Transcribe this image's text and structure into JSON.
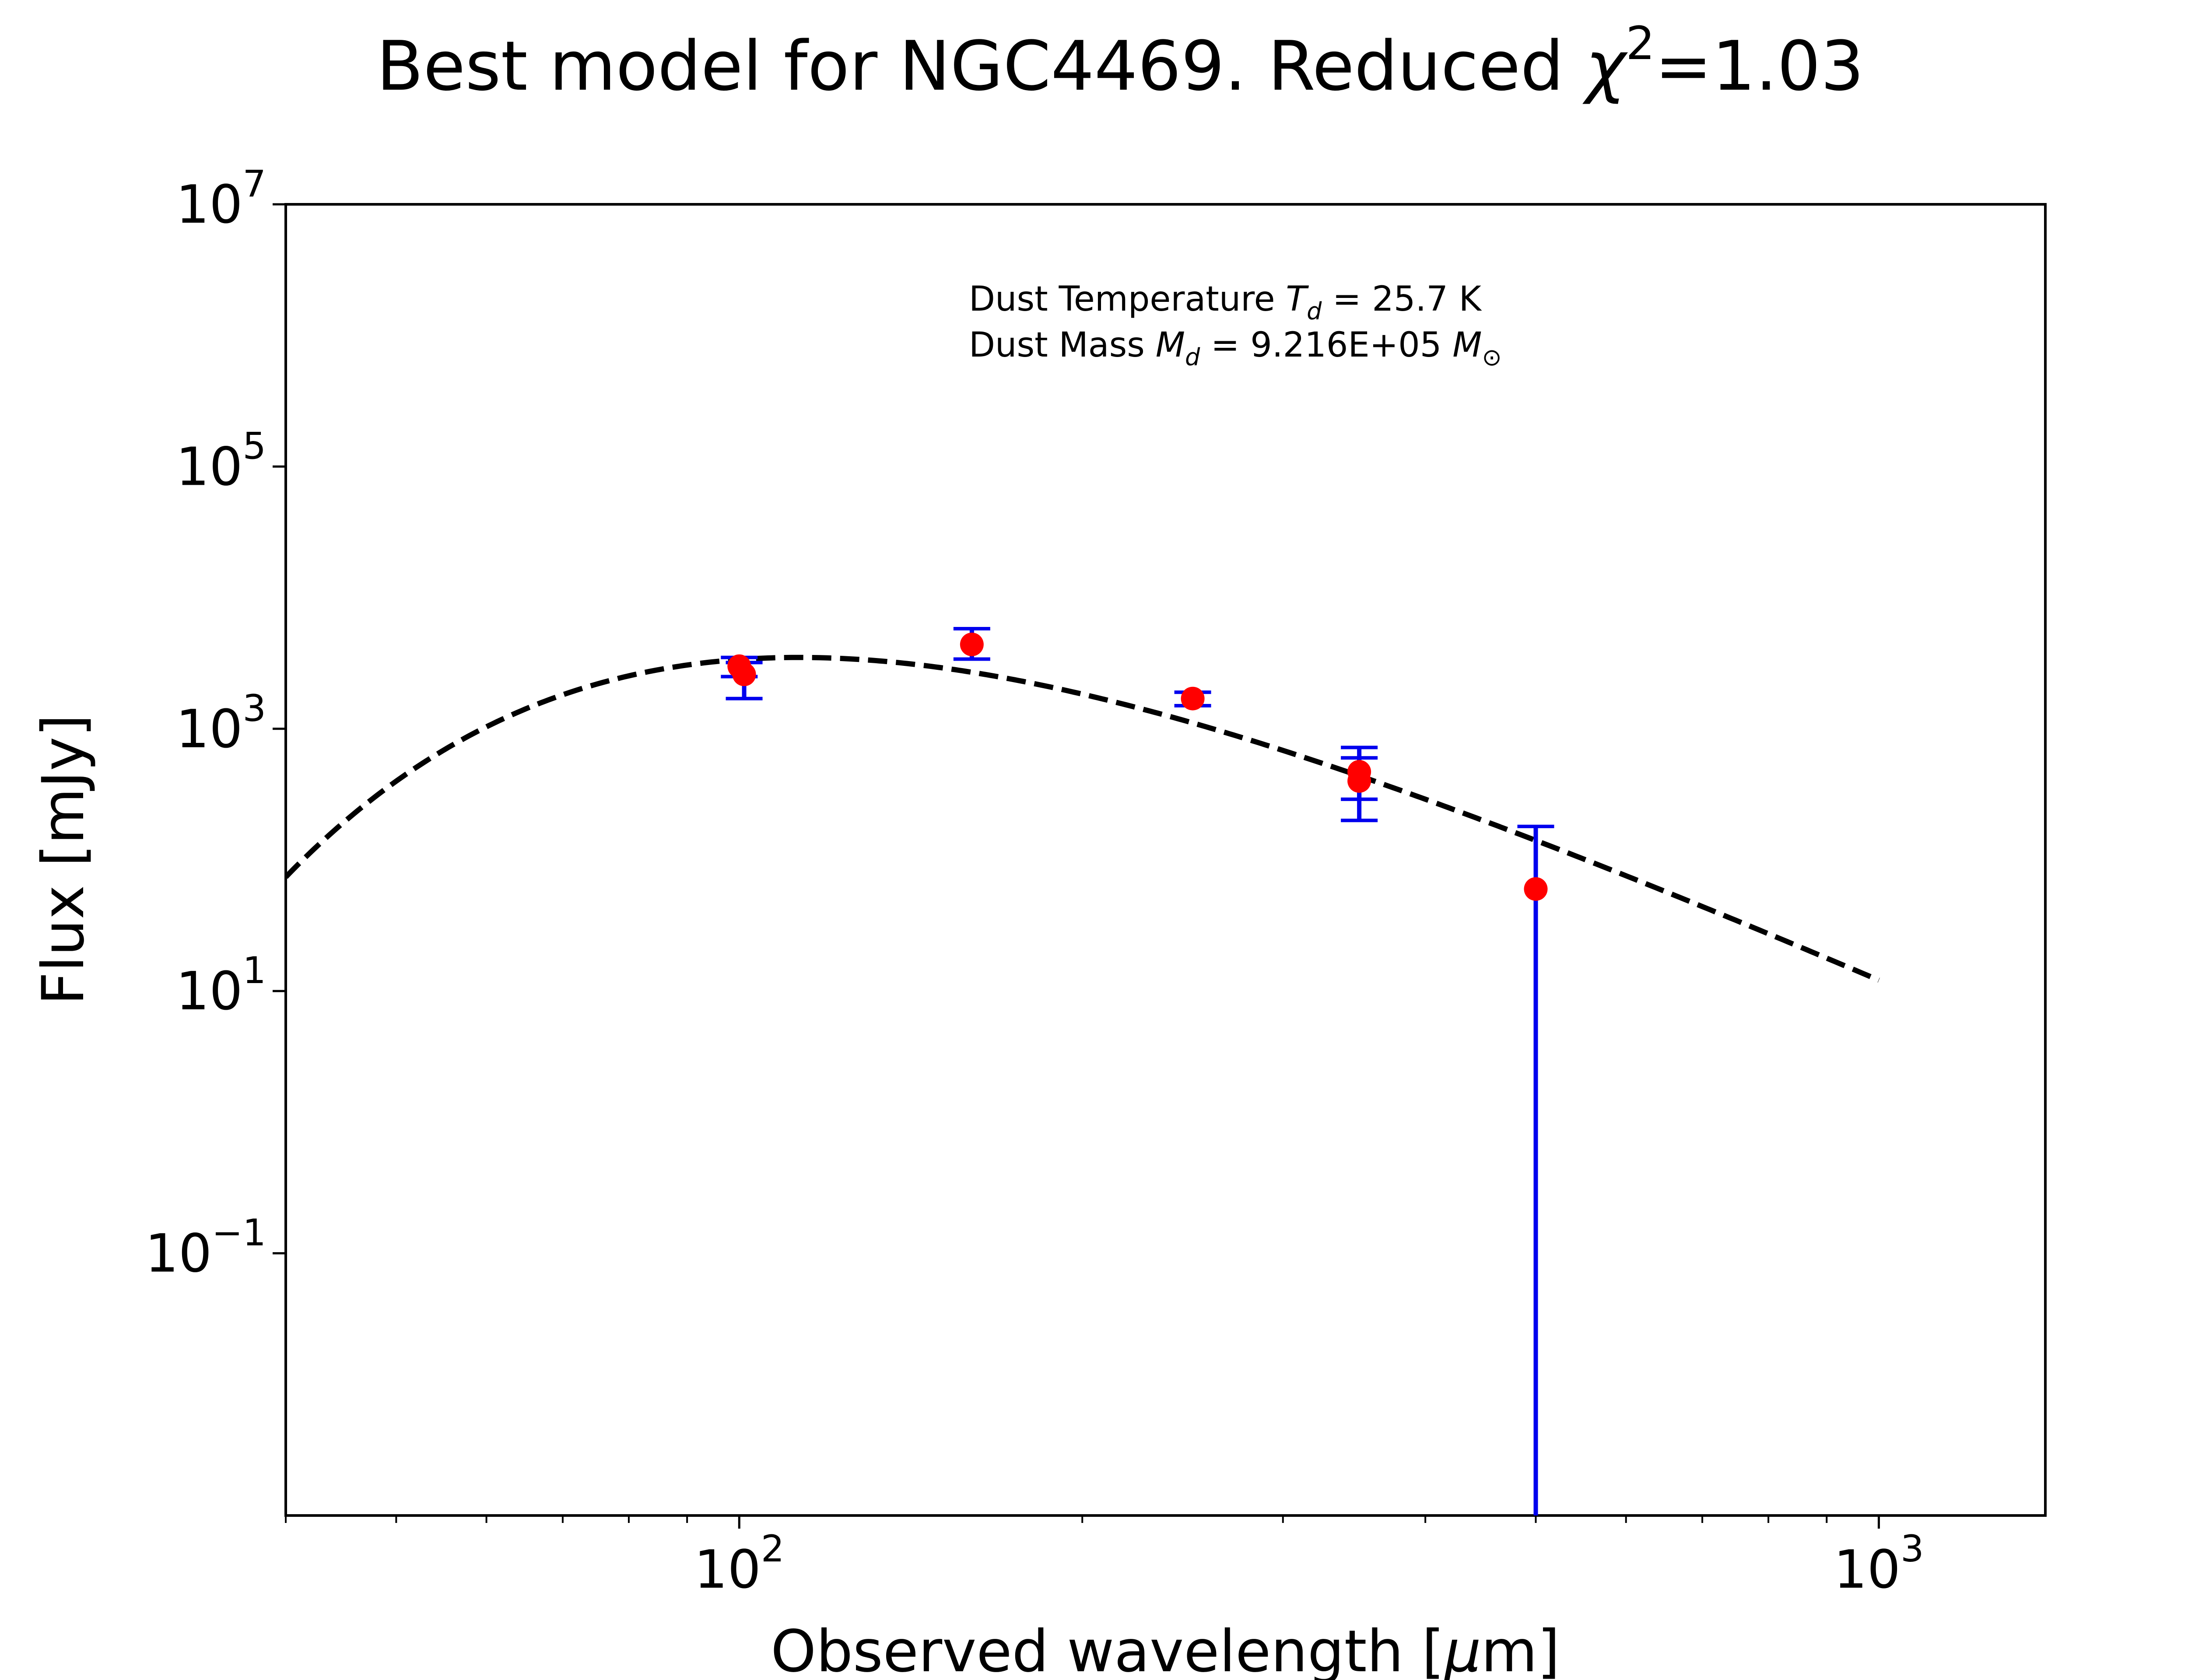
{
  "chart_data": {
    "type": "scatter",
    "title": {
      "prefix": "Best model for NGC4469. Reduced ",
      "symbol": "χ",
      "superscript": "2",
      "suffix": "=1.03"
    },
    "xlabel": {
      "prefix": "Observed wavelength [",
      "symbol": "μ",
      "suffix": "m]"
    },
    "ylabel": "Flux [mJy]",
    "xscale": "log",
    "yscale": "log",
    "xlim": [
      40,
      1400
    ],
    "ylim": [
      0.001,
      10000000
    ],
    "grid": false,
    "x_ticks": [
      {
        "value": 100,
        "base": "10",
        "exp": "2"
      },
      {
        "value": 1000,
        "base": "10",
        "exp": "3"
      }
    ],
    "y_ticks": [
      {
        "value": 0.1,
        "base": "10",
        "exp": "−1"
      },
      {
        "value": 10,
        "base": "10",
        "exp": "1"
      },
      {
        "value": 1000,
        "base": "10",
        "exp": "3"
      },
      {
        "value": 100000,
        "base": "10",
        "exp": "5"
      },
      {
        "value": 10000000,
        "base": "10",
        "exp": "7"
      }
    ],
    "annotation": {
      "line1": {
        "prefix": "Dust Temperature ",
        "sym": "T",
        "sub": "d",
        "suffix": " = 25.7 K"
      },
      "line2": {
        "prefix": "Dust Mass ",
        "sym": "M",
        "sub": "d",
        "mid": " = 9.216E+05 ",
        "sym2": "M",
        "sub2": "⊙"
      }
    },
    "model": {
      "style": "dashed",
      "color": "#000000",
      "temperature_K": 25.7,
      "beta": 2.0,
      "x_range": [
        40,
        1000
      ],
      "peak_flux_mJy": 3500
    },
    "observations": [
      {
        "x": 100,
        "y": 3000,
        "yerr_low": 500,
        "yerr_high": 500
      },
      {
        "x": 101,
        "y": 2600,
        "yerr_low": 900,
        "yerr_high": 600
      },
      {
        "x": 160,
        "y": 4400,
        "yerr_low": 1000,
        "yerr_high": 1400
      },
      {
        "x": 250,
        "y": 1700,
        "yerr_low": 200,
        "yerr_high": 200
      },
      {
        "x": 350,
        "y": 470,
        "yerr_low": 180,
        "yerr_high": 250
      },
      {
        "x": 350,
        "y": 400,
        "yerr_low": 200,
        "yerr_high": 200
      },
      {
        "x": 500,
        "y": 60,
        "yerr_low": 60,
        "yerr_high": 120
      }
    ],
    "colors": {
      "points": "#ff0000",
      "errorbars": "#0000ee",
      "model": "#000000",
      "axes": "#000000"
    }
  }
}
